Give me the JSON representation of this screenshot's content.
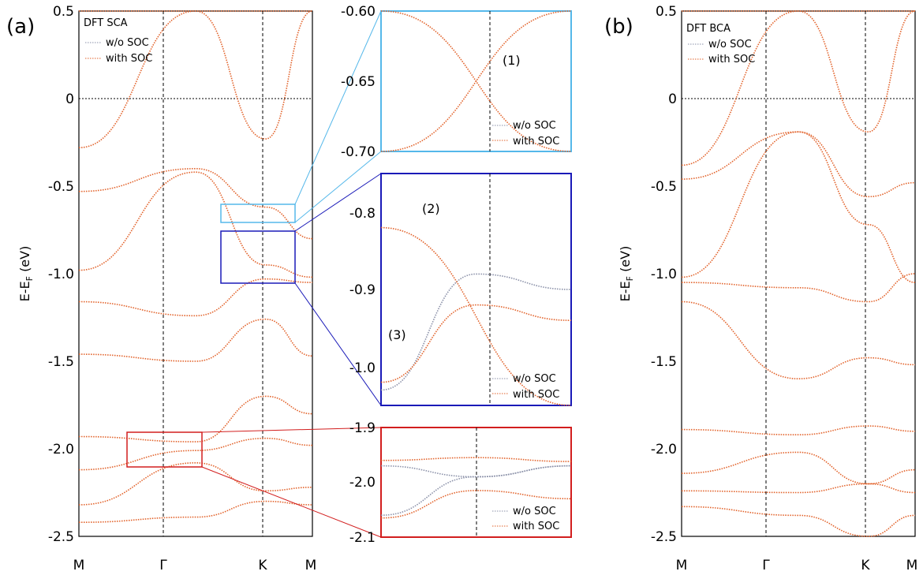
{
  "figure": {
    "panel_a_label": "(a)",
    "panel_b_label": "(b)"
  },
  "colors": {
    "no_soc": "#8a90a8",
    "with_soc": "#e2622a",
    "inset1": "#55b8ea",
    "inset2": "#1a1ab8",
    "inset3": "#d21e1e"
  },
  "chart_data": [
    {
      "type": "line",
      "panel": "(a)",
      "title": "DFT SCA",
      "ylabel": "E-E_F (eV)",
      "ylim": [
        -2.5,
        0.5
      ],
      "yticks": [
        0.5,
        0,
        -0.5,
        -1.0,
        -1.5,
        -2.0,
        -2.5
      ],
      "ytick_labels": [
        "0.5",
        "0",
        "-0.5",
        "-1.0",
        "-1.5",
        "-2.0",
        "-2.5"
      ],
      "x_labels": [
        "M",
        "Γ",
        "K",
        "M"
      ],
      "x": [
        0,
        1,
        1.6,
        2.0
      ],
      "legend": [
        "w/o SOC",
        "with SOC"
      ],
      "fermi_level": 0,
      "series": [
        {
          "legend_index": 1,
          "values": [
            -0.28,
            0.5,
            0.5,
            0.5
          ]
        },
        {
          "legend_index": 1,
          "values": [
            -0.53,
            -0.4,
            -0.62,
            -0.8
          ]
        },
        {
          "legend_index": 1,
          "values": [
            -0.98,
            -0.42,
            -0.95,
            -1.02
          ]
        },
        {
          "legend_index": 1,
          "values": [
            -1.16,
            -1.24,
            -1.03,
            -1.05
          ]
        },
        {
          "legend_index": 1,
          "values": [
            -1.46,
            -1.5,
            -1.26,
            -1.47
          ]
        },
        {
          "legend_index": 1,
          "values": [
            -1.93,
            -1.96,
            -1.7,
            -1.8
          ]
        },
        {
          "legend_index": 1,
          "values": [
            -2.12,
            -2.01,
            -1.94,
            -1.98
          ]
        },
        {
          "legend_index": 1,
          "values": [
            -2.32,
            -2.08,
            -2.24,
            -2.22
          ]
        },
        {
          "legend_index": 1,
          "values": [
            -2.42,
            -2.39,
            -2.3,
            -2.32
          ]
        },
        {
          "legend_index": 1,
          "values": [
            0.5,
            0.5,
            -0.23,
            0.5
          ]
        }
      ]
    },
    {
      "type": "line",
      "panel": "(b)",
      "title": "DFT BCA",
      "ylabel": "E-E_F (eV)",
      "ylim": [
        -2.5,
        0.5
      ],
      "yticks": [
        0.5,
        0,
        -0.5,
        -1.0,
        -1.5,
        -2.0,
        -2.5
      ],
      "ytick_labels": [
        "0.5",
        "0",
        "-0.5",
        "-1.0",
        "-1.5",
        "-2.0",
        "-2.5"
      ],
      "x_labels": [
        "M",
        "Γ",
        "K",
        "M"
      ],
      "x": [
        0,
        1,
        1.6,
        2.0
      ],
      "legend": [
        "w/o SOC",
        "with SOC"
      ],
      "fermi_level": 0,
      "series": [
        {
          "legend_index": 1,
          "values": [
            -0.38,
            0.5,
            0.5,
            0.5
          ]
        },
        {
          "legend_index": 1,
          "values": [
            -0.46,
            -0.19,
            -0.56,
            -0.48
          ]
        },
        {
          "legend_index": 1,
          "values": [
            -1.02,
            -0.19,
            -0.72,
            -1.05
          ]
        },
        {
          "legend_index": 1,
          "values": [
            -1.05,
            -1.08,
            -1.16,
            -1.0
          ]
        },
        {
          "legend_index": 1,
          "values": [
            -1.16,
            -1.6,
            -1.48,
            -1.52
          ]
        },
        {
          "legend_index": 1,
          "values": [
            -1.89,
            -1.92,
            -1.87,
            -1.9
          ]
        },
        {
          "legend_index": 1,
          "values": [
            -2.14,
            -2.02,
            -2.2,
            -2.12
          ]
        },
        {
          "legend_index": 1,
          "values": [
            -2.24,
            -2.25,
            -2.2,
            -2.25
          ]
        },
        {
          "legend_index": 1,
          "values": [
            -2.33,
            -2.38,
            -2.5,
            -2.38
          ]
        },
        {
          "legend_index": 1,
          "values": [
            0.5,
            0.5,
            -0.19,
            0.5
          ]
        }
      ]
    },
    {
      "type": "line",
      "panel": "inset (1)",
      "ylim": [
        -0.7,
        -0.6
      ],
      "yticks": [
        -0.6,
        -0.65,
        -0.7
      ],
      "ytick_labels": [
        "-0.60",
        "-0.65",
        "-0.70"
      ],
      "legend": [
        "w/o SOC",
        "with SOC"
      ],
      "annotation": "(1)",
      "series": [
        {
          "legend_index": 1,
          "values": [
            -0.6,
            -0.7
          ]
        },
        {
          "legend_index": 1,
          "values": [
            -0.7,
            -0.6
          ]
        }
      ]
    },
    {
      "type": "line",
      "panel": "inset (2)-(3)",
      "ylim": [
        -1.05,
        -0.75
      ],
      "yticks": [
        -0.8,
        -0.9,
        -1.0
      ],
      "ytick_labels": [
        "-0.8",
        "-0.9",
        "-1.0"
      ],
      "legend": [
        "w/o SOC",
        "with SOC"
      ],
      "annotations": [
        "(2)",
        "(3)"
      ],
      "series": [
        {
          "legend_index": 0,
          "values": [
            -1.03,
            -0.88,
            -0.9
          ]
        },
        {
          "legend_index": 1,
          "values": [
            -1.02,
            -0.92,
            -0.94
          ]
        },
        {
          "legend_index": 1,
          "values": [
            -0.82,
            -1.05
          ]
        }
      ]
    },
    {
      "type": "line",
      "panel": "inset red",
      "ylim": [
        -2.1,
        -1.9
      ],
      "yticks": [
        -1.9,
        -2.0,
        -2.1
      ],
      "ytick_labels": [
        "-1.9",
        "-2.0",
        "-2.1"
      ],
      "legend": [
        "w/o SOC",
        "with SOC"
      ],
      "series": [
        {
          "legend_index": 1,
          "values": [
            -1.96,
            -1.955,
            -1.962
          ]
        },
        {
          "legend_index": 0,
          "values": [
            -1.97,
            -1.99,
            -1.97
          ]
        },
        {
          "legend_index": 0,
          "values": [
            -2.06,
            -1.99,
            -1.97
          ]
        },
        {
          "legend_index": 1,
          "values": [
            -2.065,
            -2.015,
            -2.03
          ]
        }
      ]
    }
  ]
}
